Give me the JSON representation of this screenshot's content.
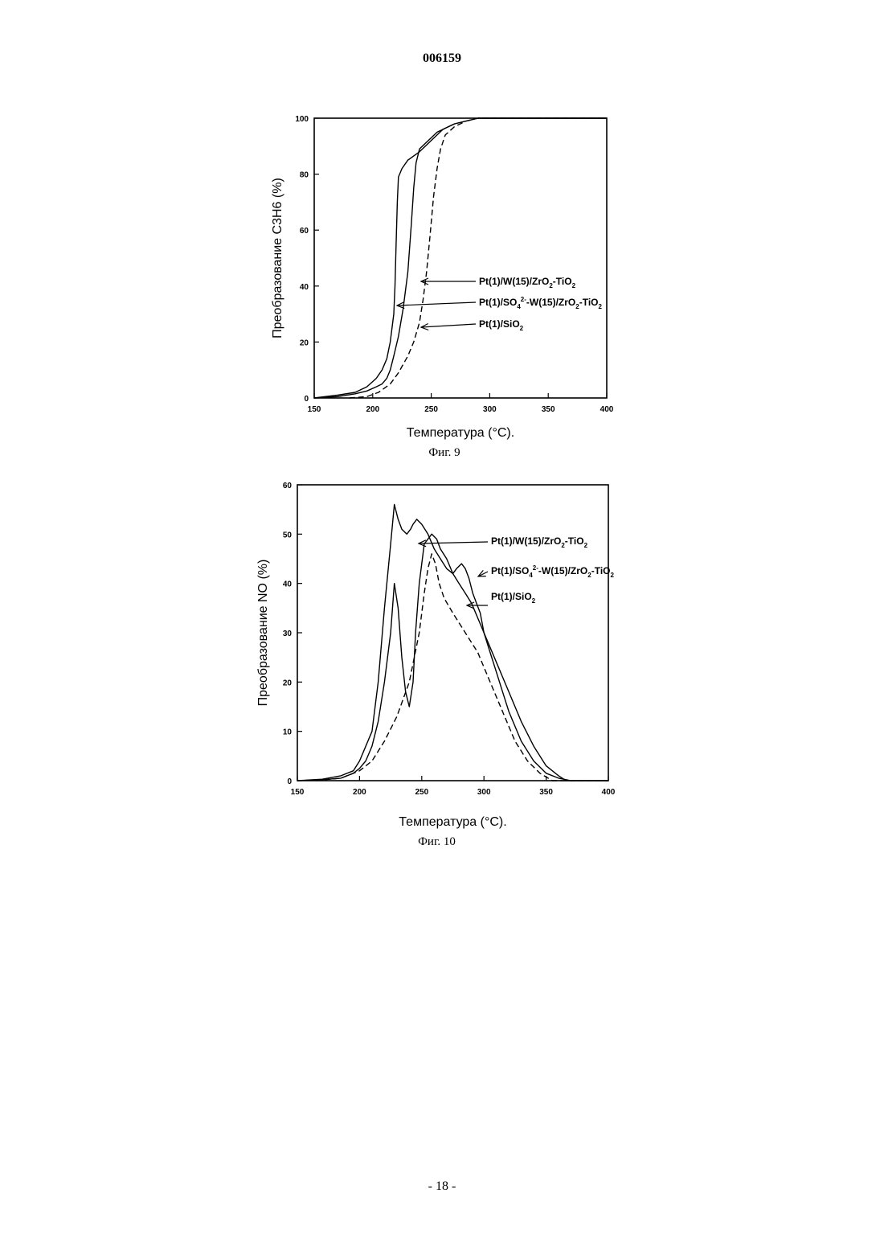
{
  "page": {
    "header": "006159",
    "footer": "- 18 -"
  },
  "chart_data": [
    {
      "type": "line",
      "caption": "Фиг. 9",
      "xlabel": "Температура (°C).",
      "ylabel": "Преобразование C3H6 (%)",
      "xlim": [
        150,
        400
      ],
      "ylim": [
        0,
        100
      ],
      "xticks": [
        150,
        200,
        250,
        300,
        350,
        400
      ],
      "yticks": [
        0,
        20,
        40,
        60,
        80,
        100
      ],
      "grid": false,
      "series": [
        {
          "name": "Pt(1)/W(15)/ZrO2-TiO2",
          "style": "solid",
          "x": [
            150,
            170,
            185,
            195,
            203,
            208,
            212,
            215,
            218,
            222,
            226,
            230,
            233,
            235,
            237,
            240,
            245,
            250,
            255,
            260,
            265,
            270,
            280,
            290,
            300,
            400
          ],
          "y": [
            0,
            0.5,
            1.5,
            2.5,
            4,
            5,
            7,
            10,
            15,
            22,
            32,
            45,
            62,
            75,
            84,
            89,
            91,
            93,
            95,
            96,
            97,
            98,
            99,
            100,
            100,
            100
          ]
        },
        {
          "name": "Pt(1)/SO4 2--W(15)/ZrO2-TiO2",
          "style": "solid",
          "x": [
            150,
            170,
            185,
            195,
            203,
            208,
            212,
            215,
            218,
            219,
            220,
            221,
            222,
            225,
            230,
            240,
            250,
            260,
            270,
            280,
            290,
            300,
            400
          ],
          "y": [
            0,
            1,
            2,
            4,
            7,
            10,
            14,
            20,
            30,
            40,
            55,
            70,
            79,
            82,
            85,
            88,
            92,
            96,
            98,
            99,
            100,
            100,
            100
          ]
        },
        {
          "name": "Pt(1)/SiO2",
          "style": "dashed",
          "x": [
            180,
            195,
            205,
            215,
            222,
            230,
            235,
            240,
            243,
            246,
            249,
            252,
            255,
            258,
            262,
            270,
            280,
            290,
            400
          ],
          "y": [
            0,
            0.5,
            2,
            5,
            9,
            15,
            20,
            27,
            35,
            45,
            58,
            72,
            82,
            89,
            94,
            97,
            99,
            100,
            100
          ]
        }
      ],
      "legend": [
        {
          "text": "Pt(1)/W(15)/ZrO",
          "sub1": "2",
          "mid": "-TiO",
          "sub2": "2"
        },
        {
          "text": "Pt(1)/SO",
          "sub1": "4",
          "sup": "2-",
          "mid": "-W(15)/ZrO",
          "sub2": "2",
          "mid2": "-TiO",
          "sub3": "2"
        },
        {
          "text": "Pt(1)/SiO",
          "sub1": "2"
        }
      ]
    },
    {
      "type": "line",
      "caption": "Фиг. 10",
      "xlabel": "Температура (°C).",
      "ylabel": "Преобразование NO (%)",
      "xlim": [
        150,
        400
      ],
      "ylim": [
        0,
        60
      ],
      "xticks": [
        150,
        200,
        250,
        300,
        350,
        400
      ],
      "yticks": [
        0,
        10,
        20,
        30,
        40,
        50,
        60
      ],
      "grid": false,
      "series": [
        {
          "name": "Pt(1)/W(15)/ZrO2-TiO2",
          "style": "solid",
          "x": [
            150,
            170,
            185,
            195,
            200,
            205,
            210,
            215,
            220,
            225,
            228,
            231,
            234,
            237,
            240,
            243,
            245,
            248,
            252,
            258,
            262,
            265,
            270,
            275,
            280,
            285,
            290,
            295,
            300,
            310,
            320,
            330,
            340,
            350,
            360,
            366,
            400
          ],
          "y": [
            0,
            0.2,
            0.5,
            1.5,
            2.5,
            4,
            7,
            12,
            20,
            30,
            40,
            35,
            25,
            18,
            15,
            20,
            30,
            40,
            48,
            50,
            49,
            47,
            45,
            42,
            40,
            38,
            36,
            33,
            30,
            24,
            18,
            12,
            7,
            3,
            1,
            0,
            0
          ]
        },
        {
          "name": "Pt(1)/SO4 2--W(15)/ZrO2-TiO2",
          "style": "solid",
          "x": [
            150,
            170,
            185,
            195,
            200,
            210,
            215,
            220,
            225,
            228,
            231,
            234,
            238,
            241,
            243,
            246,
            250,
            255,
            260,
            265,
            270,
            275,
            278,
            282,
            285,
            288,
            291,
            294,
            297,
            300,
            305,
            310,
            315,
            320,
            330,
            340,
            350,
            360,
            370,
            400
          ],
          "y": [
            0,
            0.3,
            1,
            2,
            4,
            10,
            20,
            35,
            48,
            56,
            53,
            51,
            50,
            51,
            52,
            53,
            52,
            50,
            47,
            45,
            43,
            42,
            43,
            44,
            43,
            41,
            38,
            36,
            34,
            30,
            26,
            22,
            18,
            14,
            8,
            4,
            1.5,
            0.5,
            0,
            0
          ]
        },
        {
          "name": "Pt(1)/SiO2",
          "style": "dashed",
          "x": [
            165,
            185,
            200,
            210,
            220,
            230,
            240,
            248,
            252,
            255,
            258,
            261,
            264,
            268,
            275,
            285,
            295,
            305,
            315,
            325,
            335,
            345,
            355,
            400
          ],
          "y": [
            0,
            0.5,
            2,
            4,
            8,
            13,
            20,
            30,
            38,
            43,
            46,
            44,
            40,
            37,
            34,
            30,
            26,
            20,
            14,
            8,
            4,
            1.5,
            0,
            0
          ]
        }
      ],
      "legend": [
        {
          "text": "Pt(1)/W(15)/ZrO",
          "sub1": "2",
          "mid": "-TiO",
          "sub2": "2"
        },
        {
          "text": "Pt(1)/SO",
          "sub1": "4",
          "sup": "2-",
          "mid": "-W(15)/ZrO",
          "sub2": "2",
          "mid2": "-TiO",
          "sub3": "2"
        },
        {
          "text": "Pt(1)/SiO",
          "sub1": "2"
        }
      ]
    }
  ]
}
